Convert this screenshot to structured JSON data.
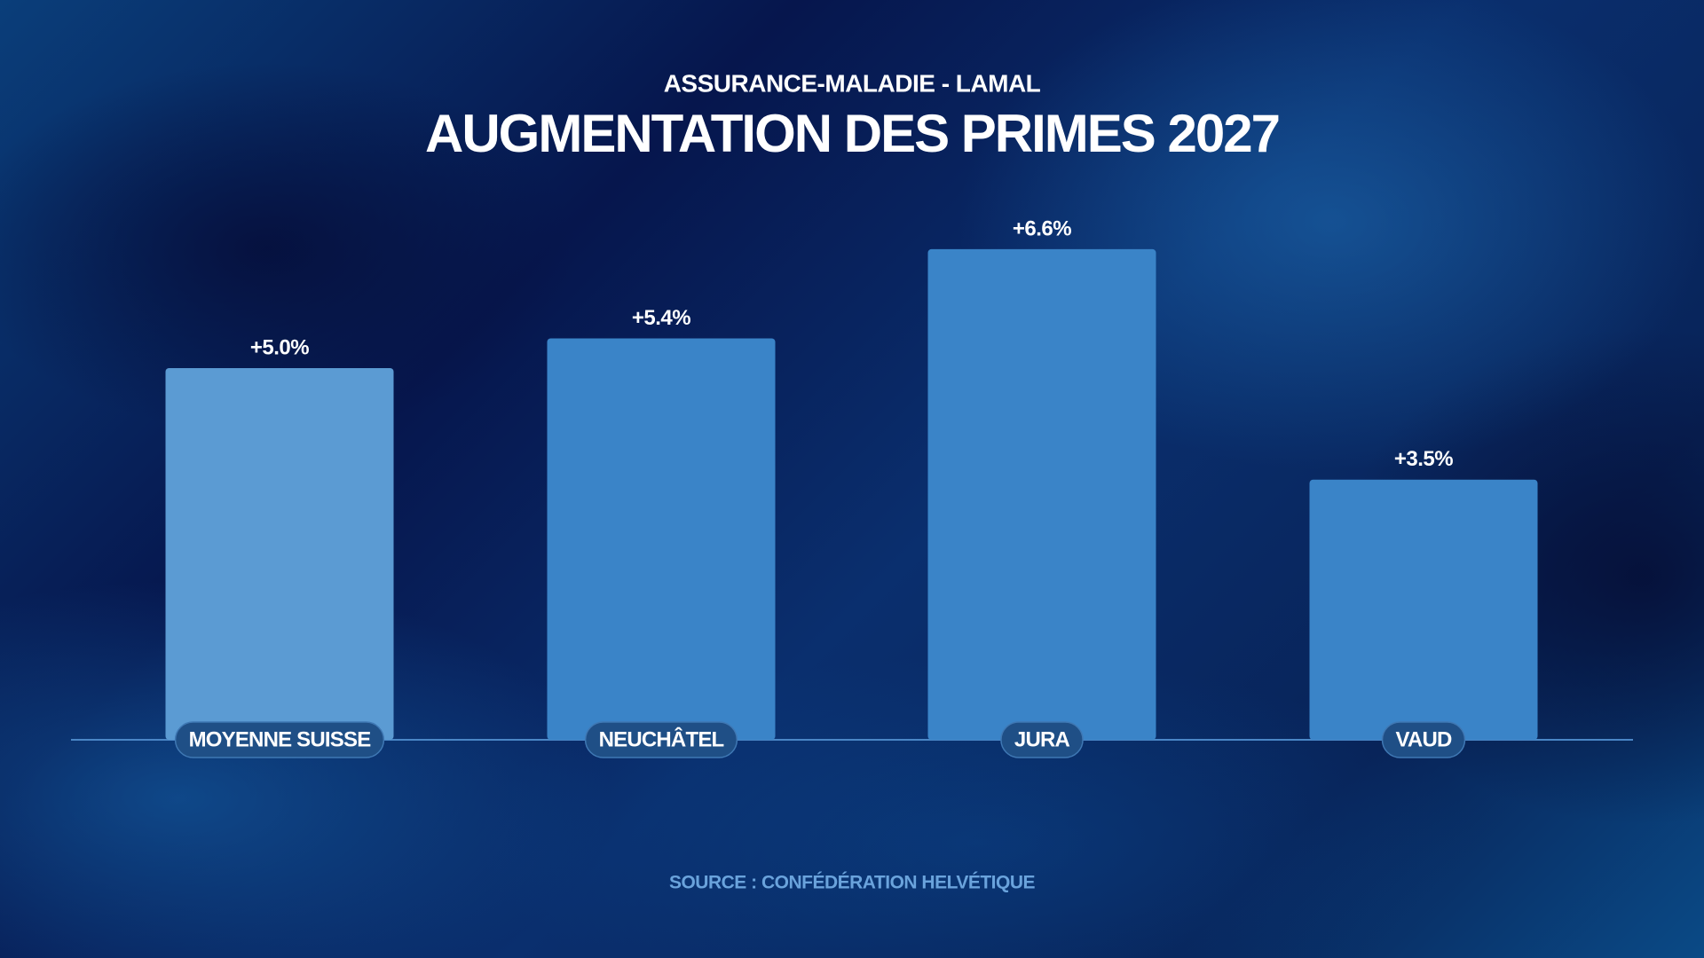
{
  "chart_data": {
    "type": "bar",
    "subtitle": "ASSURANCE-MALADIE - LAMAL",
    "title": "AUGMENTATION DES PRIMES 2027",
    "categories": [
      "MOYENNE SUISSE",
      "NEUCHÂTEL",
      "JURA",
      "VAUD"
    ],
    "values": [
      5.0,
      5.4,
      6.6,
      3.5
    ],
    "value_labels": [
      "+5.0%",
      "+5.4%",
      "+6.6%",
      "+3.5%"
    ],
    "colors": [
      "#5b9bd3",
      "#3a84c8",
      "#3a84c8",
      "#3a84c8"
    ],
    "source": "SOURCE : CONFÉDÉRATION HELVÉTIQUE"
  }
}
